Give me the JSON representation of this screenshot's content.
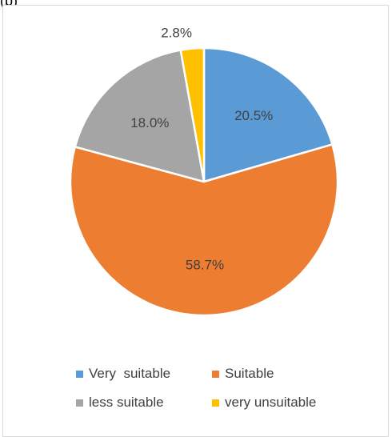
{
  "header_fragment": "(b)",
  "chart_data": {
    "type": "pie",
    "title": "",
    "categories": [
      "Very  suitable",
      "Suitable",
      "less suitable",
      "very unsuitable"
    ],
    "values": [
      20.5,
      58.7,
      18.0,
      2.8
    ],
    "value_labels": [
      "20.5%",
      "58.7%",
      "18.0%",
      "2.8%"
    ],
    "colors": [
      "#5b9bd5",
      "#ed7d31",
      "#a5a5a5",
      "#ffc000"
    ],
    "legend_position": "bottom",
    "start_angle": "top-clockwise"
  }
}
